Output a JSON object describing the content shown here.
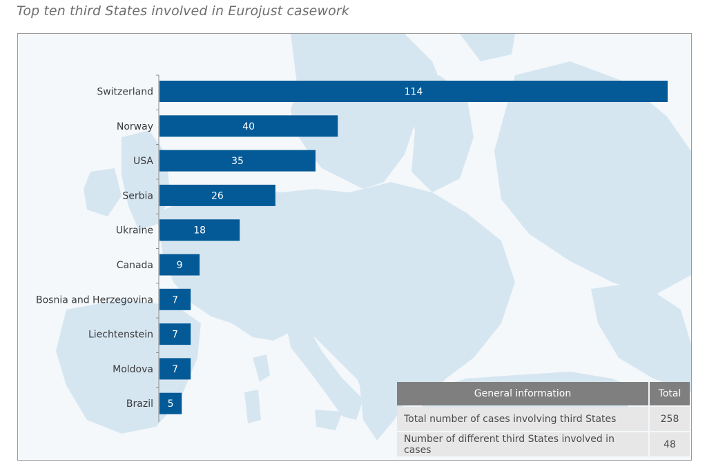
{
  "title": "Top ten third States involved in Eurojust casework",
  "colors": {
    "bar": "#035a96",
    "map": "#d6e6f1",
    "header": "#7f7f7f",
    "cell": "#e7e7e7"
  },
  "chart_data": {
    "type": "bar",
    "orientation": "horizontal",
    "categories": [
      "Switzerland",
      "Norway",
      "USA",
      "Serbia",
      "Ukraine",
      "Canada",
      "Bosnia and Herzegovina",
      "Liechtenstein",
      "Moldova",
      "Brazil"
    ],
    "values": [
      114,
      40,
      35,
      26,
      18,
      9,
      7,
      7,
      7,
      5
    ],
    "data_labels": true,
    "grid": false,
    "legend": false
  },
  "info_table": {
    "headers": [
      "General information",
      "Total"
    ],
    "rows": [
      {
        "label": "Total number of cases involving third States",
        "value": "258"
      },
      {
        "label": "Number of different third States involved in cases",
        "value": "48"
      }
    ]
  }
}
